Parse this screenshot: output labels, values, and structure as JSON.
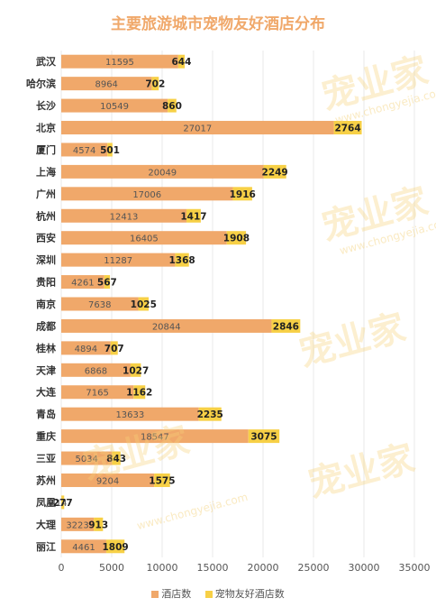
{
  "title": "主要旅游城市宠物友好酒店分布",
  "colors": {
    "series1": "#f0a86a",
    "series2": "#f7d046",
    "title": "#f0a86a",
    "grid": "#e8e8e8"
  },
  "watermark": {
    "text": "宠业家",
    "url": "www.chongyejia.com"
  },
  "chart_data": {
    "type": "bar",
    "orientation": "horizontal",
    "stacked": true,
    "title": "主要旅游城市宠物友好酒店分布",
    "categories": [
      "武汉",
      "哈尔滨",
      "长沙",
      "北京",
      "厦门",
      "上海",
      "广州",
      "杭州",
      "西安",
      "深圳",
      "贵阳",
      "南京",
      "成都",
      "桂林",
      "天津",
      "大连",
      "青岛",
      "重庆",
      "三亚",
      "苏州",
      "凤凰",
      "大理",
      "丽江"
    ],
    "series": [
      {
        "name": "酒店数",
        "values": [
          11595,
          8964,
          10549,
          27017,
          4574,
          20049,
          17006,
          12413,
          16405,
          11287,
          4261,
          7638,
          20844,
          4894,
          6868,
          7165,
          13633,
          18547,
          5034,
          9204,
          14,
          3223,
          4461
        ]
      },
      {
        "name": "宠物友好酒店数",
        "values": [
          644,
          702,
          860,
          2764,
          501,
          2249,
          1916,
          1417,
          1908,
          1368,
          567,
          1025,
          2846,
          707,
          1027,
          1162,
          2235,
          3075,
          843,
          1575,
          277,
          913,
          1809
        ]
      }
    ],
    "xlim": [
      0,
      35000
    ],
    "xticks": [
      0,
      5000,
      10000,
      15000,
      20000,
      25000,
      30000,
      35000
    ],
    "grid": true,
    "legend_position": "bottom"
  }
}
